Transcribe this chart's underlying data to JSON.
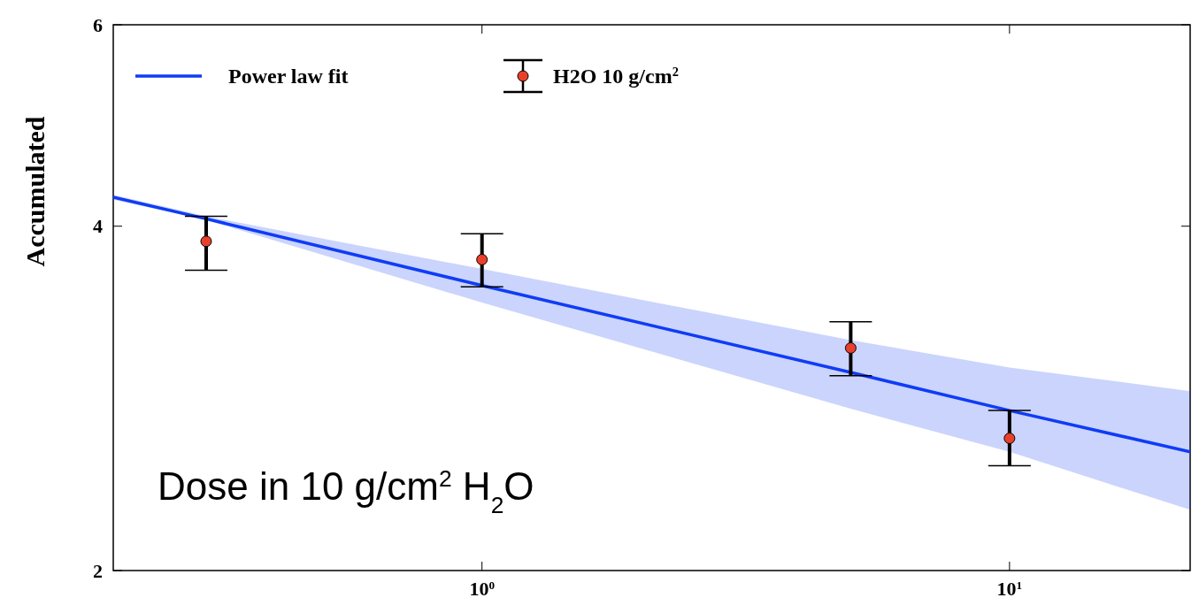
{
  "chart_data": {
    "type": "scatter",
    "ylabel": "Accumulated",
    "log": "xy",
    "xlim": [
      0.2,
      22
    ],
    "ylim": [
      2,
      6
    ],
    "xticks": [
      {
        "value": 1,
        "label": "10$^{0}$"
      },
      {
        "value": 10,
        "label": "10$^{1}$"
      }
    ],
    "yticks": [
      2,
      4,
      6
    ],
    "legend": "top left",
    "grid": false,
    "series": [
      {
        "name": "Power law fit",
        "type": "line",
        "color": "#0f3cf5",
        "x": [
          0.2,
          0.3,
          1,
          5,
          10,
          22
        ],
        "values": [
          4.24,
          4.06,
          3.55,
          2.98,
          2.76,
          2.54
        ],
        "lower": [
          4.22,
          4.05,
          3.43,
          2.77,
          2.54,
          2.26
        ],
        "upper": [
          4.26,
          4.08,
          3.67,
          3.18,
          3.01,
          2.87
        ]
      },
      {
        "name": "H2O 10 g/cm$^{2}$",
        "marker": "circle",
        "color": "#e8402a",
        "x": [
          0.3,
          1,
          5,
          10
        ],
        "values": [
          3.88,
          3.74,
          3.13,
          2.61
        ],
        "errors": [
          [
            3.66,
            4.08
          ],
          [
            3.54,
            3.94
          ],
          [
            2.96,
            3.3
          ],
          [
            2.47,
            2.76
          ]
        ]
      }
    ],
    "annotations": [
      {
        "text": "Dose in 10 g/cm$^{2}$ H$_{2}$O"
      }
    ]
  }
}
